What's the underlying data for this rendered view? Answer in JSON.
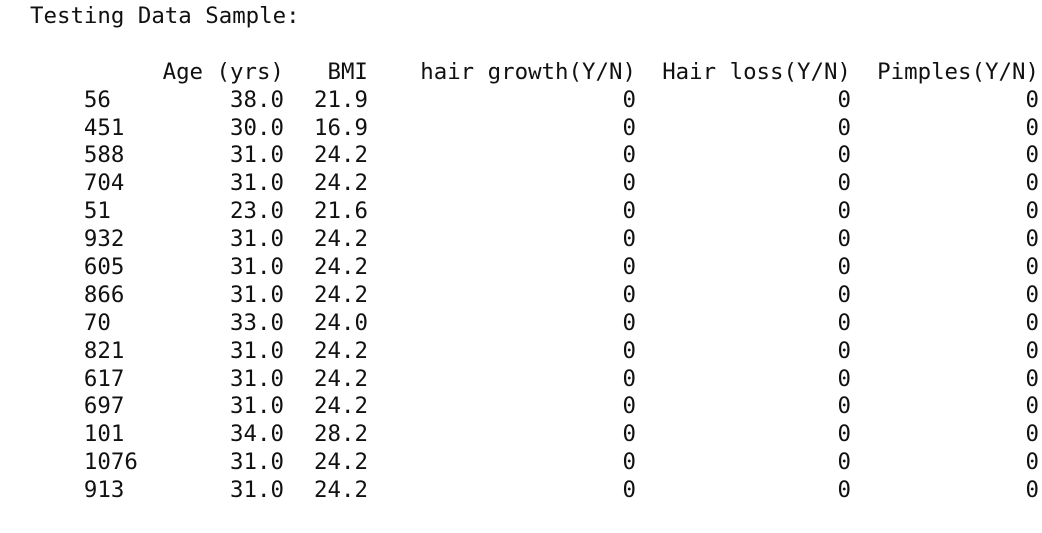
{
  "title": "Testing Data Sample:",
  "columns": {
    "index": "",
    "age": "Age (yrs)",
    "bmi": "BMI",
    "hair_growth": "hair growth(Y/N)",
    "hair_loss": "Hair loss(Y/N)",
    "pimples": "Pimples(Y/N)"
  },
  "rows": [
    {
      "index": "56",
      "age": "38.0",
      "bmi": "21.9",
      "hair_growth": "0",
      "hair_loss": "0",
      "pimples": "0"
    },
    {
      "index": "451",
      "age": "30.0",
      "bmi": "16.9",
      "hair_growth": "0",
      "hair_loss": "0",
      "pimples": "0"
    },
    {
      "index": "588",
      "age": "31.0",
      "bmi": "24.2",
      "hair_growth": "0",
      "hair_loss": "0",
      "pimples": "0"
    },
    {
      "index": "704",
      "age": "31.0",
      "bmi": "24.2",
      "hair_growth": "0",
      "hair_loss": "0",
      "pimples": "0"
    },
    {
      "index": "51",
      "age": "23.0",
      "bmi": "21.6",
      "hair_growth": "0",
      "hair_loss": "0",
      "pimples": "0"
    },
    {
      "index": "932",
      "age": "31.0",
      "bmi": "24.2",
      "hair_growth": "0",
      "hair_loss": "0",
      "pimples": "0"
    },
    {
      "index": "605",
      "age": "31.0",
      "bmi": "24.2",
      "hair_growth": "0",
      "hair_loss": "0",
      "pimples": "0"
    },
    {
      "index": "866",
      "age": "31.0",
      "bmi": "24.2",
      "hair_growth": "0",
      "hair_loss": "0",
      "pimples": "0"
    },
    {
      "index": "70",
      "age": "33.0",
      "bmi": "24.0",
      "hair_growth": "0",
      "hair_loss": "0",
      "pimples": "0"
    },
    {
      "index": "821",
      "age": "31.0",
      "bmi": "24.2",
      "hair_growth": "0",
      "hair_loss": "0",
      "pimples": "0"
    },
    {
      "index": "617",
      "age": "31.0",
      "bmi": "24.2",
      "hair_growth": "0",
      "hair_loss": "0",
      "pimples": "0"
    },
    {
      "index": "697",
      "age": "31.0",
      "bmi": "24.2",
      "hair_growth": "0",
      "hair_loss": "0",
      "pimples": "0"
    },
    {
      "index": "101",
      "age": "34.0",
      "bmi": "28.2",
      "hair_growth": "0",
      "hair_loss": "0",
      "pimples": "0"
    },
    {
      "index": "1076",
      "age": "31.0",
      "bmi": "24.2",
      "hair_growth": "0",
      "hair_loss": "0",
      "pimples": "0"
    },
    {
      "index": "913",
      "age": "31.0",
      "bmi": "24.2",
      "hair_growth": "0",
      "hair_loss": "0",
      "pimples": "0"
    }
  ]
}
